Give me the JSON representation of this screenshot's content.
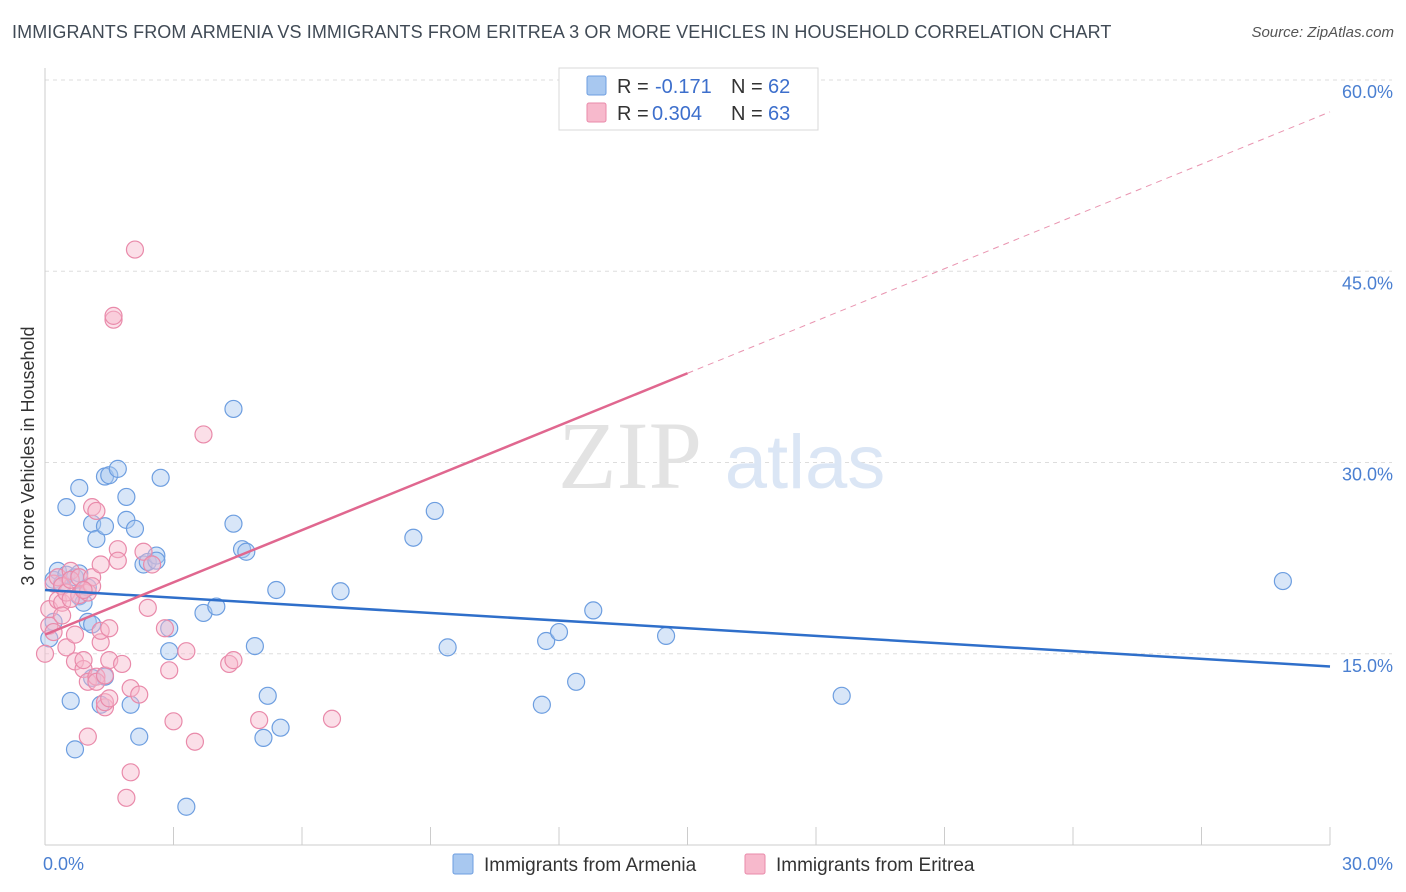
{
  "title": "IMMIGRANTS FROM ARMENIA VS IMMIGRANTS FROM ERITREA 3 OR MORE VEHICLES IN HOUSEHOLD CORRELATION CHART",
  "source": "Source: ZipAtlas.com",
  "watermark": {
    "zip": "ZIP",
    "atlas": "atlas"
  },
  "chart_data": {
    "type": "scatter",
    "xlabel": "",
    "ylabel": "3 or more Vehicles in Household",
    "xlim": [
      0,
      30
    ],
    "ylim": [
      0,
      60
    ],
    "x_tick_labels": [
      "0.0%",
      "30.0%"
    ],
    "y_ticks": [
      15,
      30,
      45,
      60
    ],
    "y_tick_labels": [
      "15.0%",
      "30.0%",
      "45.0%",
      "60.0%"
    ],
    "legend": {
      "position": "top-center",
      "entries": [
        {
          "series": "Immigrants from Armenia",
          "r_label": "R =",
          "r_value": "-0.171",
          "n_label": "N =",
          "n_value": "62",
          "color": "#a8c8f0",
          "stroke": "#6d9ee0"
        },
        {
          "series": "Immigrants from Eritrea",
          "r_label": "R =",
          "r_value": "0.304",
          "n_label": "N =",
          "n_value": "63",
          "color": "#f7b9cc",
          "stroke": "#e98aaa"
        }
      ]
    },
    "series": [
      {
        "name": "Immigrants from Armenia",
        "color": "#a8c8f0",
        "stroke": "#6d9ee0",
        "trend": {
          "x": [
            0,
            30
          ],
          "y": [
            20.0,
            14.0
          ],
          "color": "#2f6fca"
        },
        "points": [
          [
            0.1,
            16.2
          ],
          [
            0.2,
            17.5
          ],
          [
            0.2,
            20.8
          ],
          [
            0.3,
            21.5
          ],
          [
            0.4,
            20.5
          ],
          [
            0.5,
            21.2
          ],
          [
            0.5,
            26.5
          ],
          [
            0.6,
            11.3
          ],
          [
            0.7,
            21.0
          ],
          [
            0.7,
            7.5
          ],
          [
            0.8,
            21.3
          ],
          [
            0.8,
            28.0
          ],
          [
            0.8,
            19.5
          ],
          [
            0.9,
            19.0
          ],
          [
            1.0,
            17.5
          ],
          [
            1.0,
            20.2
          ],
          [
            1.1,
            17.3
          ],
          [
            1.1,
            13.1
          ],
          [
            1.1,
            25.2
          ],
          [
            1.2,
            24.0
          ],
          [
            1.3,
            11.0
          ],
          [
            1.4,
            25.0
          ],
          [
            1.4,
            28.9
          ],
          [
            1.4,
            13.2
          ],
          [
            1.5,
            29.0
          ],
          [
            1.7,
            29.5
          ],
          [
            1.9,
            25.5
          ],
          [
            1.9,
            27.3
          ],
          [
            2.0,
            11.0
          ],
          [
            2.1,
            24.8
          ],
          [
            2.2,
            8.5
          ],
          [
            2.3,
            22.0
          ],
          [
            2.4,
            22.2
          ],
          [
            2.6,
            22.7
          ],
          [
            2.6,
            22.3
          ],
          [
            2.7,
            28.8
          ],
          [
            2.9,
            17.0
          ],
          [
            2.9,
            15.2
          ],
          [
            3.3,
            3.0
          ],
          [
            3.7,
            18.2
          ],
          [
            4.0,
            18.7
          ],
          [
            4.4,
            25.2
          ],
          [
            4.4,
            34.2
          ],
          [
            4.6,
            23.2
          ],
          [
            4.7,
            23.0
          ],
          [
            4.9,
            15.6
          ],
          [
            5.1,
            8.4
          ],
          [
            5.2,
            11.7
          ],
          [
            5.4,
            20.0
          ],
          [
            5.5,
            9.2
          ],
          [
            6.9,
            19.9
          ],
          [
            8.6,
            24.1
          ],
          [
            9.1,
            26.2
          ],
          [
            9.4,
            15.5
          ],
          [
            11.6,
            11.0
          ],
          [
            11.7,
            16.0
          ],
          [
            12.0,
            16.7
          ],
          [
            12.4,
            12.8
          ],
          [
            12.8,
            18.4
          ],
          [
            14.5,
            16.4
          ],
          [
            18.6,
            11.7
          ],
          [
            28.9,
            20.7
          ]
        ]
      },
      {
        "name": "Immigrants from Eritrea",
        "color": "#f7b9cc",
        "stroke": "#e98aaa",
        "trend": {
          "x": [
            0,
            15
          ],
          "y": [
            16.5,
            37.0
          ],
          "color": "#e0678f",
          "dashed_extension": {
            "x": [
              15,
              30
            ],
            "y": [
              37.0,
              57.5
            ]
          }
        },
        "points": [
          [
            0.0,
            15.0
          ],
          [
            0.1,
            17.2
          ],
          [
            0.1,
            18.5
          ],
          [
            0.2,
            20.5
          ],
          [
            0.2,
            16.7
          ],
          [
            0.3,
            19.2
          ],
          [
            0.3,
            21.0
          ],
          [
            0.4,
            19.0
          ],
          [
            0.4,
            20.3
          ],
          [
            0.5,
            15.5
          ],
          [
            0.5,
            19.8
          ],
          [
            0.6,
            21.5
          ],
          [
            0.6,
            20.8
          ],
          [
            0.7,
            14.4
          ],
          [
            0.7,
            16.5
          ],
          [
            0.8,
            19.6
          ],
          [
            0.8,
            21.0
          ],
          [
            0.9,
            13.8
          ],
          [
            0.9,
            14.5
          ],
          [
            1.0,
            19.8
          ],
          [
            1.0,
            12.8
          ],
          [
            1.0,
            8.5
          ],
          [
            1.1,
            26.5
          ],
          [
            1.1,
            21.0
          ],
          [
            1.1,
            20.3
          ],
          [
            1.2,
            26.2
          ],
          [
            1.2,
            13.2
          ],
          [
            1.2,
            12.8
          ],
          [
            1.3,
            15.9
          ],
          [
            1.3,
            16.8
          ],
          [
            1.3,
            22.0
          ],
          [
            1.4,
            10.8
          ],
          [
            1.4,
            11.2
          ],
          [
            1.4,
            13.3
          ],
          [
            1.5,
            11.5
          ],
          [
            1.5,
            17.0
          ],
          [
            1.5,
            14.5
          ],
          [
            1.6,
            41.2
          ],
          [
            1.6,
            41.5
          ],
          [
            1.7,
            23.2
          ],
          [
            1.7,
            22.3
          ],
          [
            1.8,
            14.2
          ],
          [
            1.9,
            3.7
          ],
          [
            2.0,
            5.7
          ],
          [
            2.0,
            12.3
          ],
          [
            2.1,
            46.7
          ],
          [
            2.2,
            11.8
          ],
          [
            2.3,
            23.0
          ],
          [
            2.4,
            18.6
          ],
          [
            2.5,
            22.0
          ],
          [
            2.8,
            17.0
          ],
          [
            2.9,
            13.7
          ],
          [
            3.0,
            9.7
          ],
          [
            3.3,
            15.2
          ],
          [
            3.5,
            8.1
          ],
          [
            3.7,
            32.2
          ],
          [
            4.3,
            14.2
          ],
          [
            4.4,
            14.5
          ],
          [
            5.0,
            9.8
          ],
          [
            6.7,
            9.9
          ],
          [
            0.4,
            18.0
          ],
          [
            0.6,
            19.3
          ],
          [
            0.9,
            20.0
          ]
        ]
      }
    ]
  }
}
